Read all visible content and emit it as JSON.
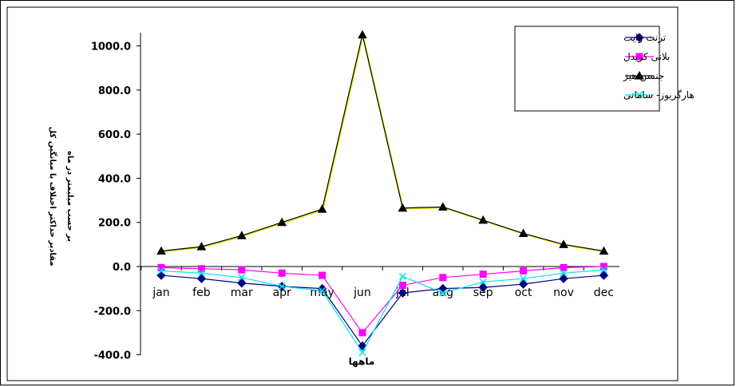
{
  "chart_data": {
    "type": "line",
    "categories": [
      "jan",
      "feb",
      "mar",
      "apr",
      "may",
      "jun",
      "jul",
      "aug",
      "sep",
      "oct",
      "nov",
      "dec"
    ],
    "xlabel": "ماهها",
    "ylabel_line1": "مقادیر حداکثر اختلاف با میانگین کل",
    "ylabel_line2": "بر حسب میلیمتر در ماه",
    "yticks": [
      "1000.0",
      "800.0",
      "600.0",
      "400.0",
      "200.0",
      "0.0",
      "-200.0",
      "-400.0"
    ],
    "ylim": [
      -400,
      1100
    ],
    "grid": false,
    "legend_position": "top-right",
    "series": [
      {
        "name": "ترنث وایت",
        "color": "#000080",
        "marker": "diamond",
        "values": [
          -40,
          -55,
          -75,
          -90,
          -100,
          -360,
          -120,
          -100,
          -95,
          -80,
          -55,
          -40
        ]
      },
      {
        "name": "بلانی کریدل",
        "color": "#FF00FF",
        "marker": "square",
        "values": [
          -5,
          -10,
          -15,
          -30,
          -40,
          -300,
          -85,
          -50,
          -35,
          -20,
          -5,
          0
        ]
      },
      {
        "name": "جنسن هیز",
        "color": "#000000",
        "marker": "triangle",
        "values": [
          70,
          90,
          140,
          200,
          260,
          1050,
          265,
          270,
          210,
          150,
          100,
          70
        ]
      },
      {
        "name": "هارگریوز- سامانی",
        "color": "#00E5EE",
        "marker": "x",
        "values": [
          -20,
          -30,
          -50,
          -90,
          -110,
          -390,
          -45,
          -120,
          -70,
          -55,
          -30,
          -15
        ]
      }
    ]
  }
}
